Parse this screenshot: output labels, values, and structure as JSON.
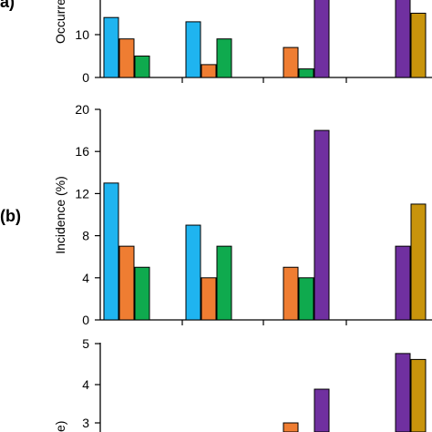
{
  "panels": [
    {
      "label": "(a)",
      "ylabel": "Occurrence",
      "yticks": [
        0,
        10
      ],
      "ylim": [
        0,
        20
      ]
    },
    {
      "label": "(b)",
      "ylabel": "Incidence (%)",
      "yticks": [
        0,
        4,
        8,
        12,
        16,
        20
      ],
      "ylim": [
        0,
        20
      ]
    },
    {
      "label": "",
      "ylabel": "e)",
      "yticks": [
        3,
        4,
        5
      ],
      "ylim": [
        2.6,
        5.1
      ]
    }
  ],
  "colors": {
    "blue": "#1FB4F0",
    "orange": "#EF7D32",
    "green": "#0FAA4E",
    "purple": "#7030A0",
    "gold": "#C8940C"
  },
  "chart_data": [
    {
      "type": "bar",
      "title": "",
      "xlabel": "",
      "ylabel": "Occurrence",
      "ylim": [
        0,
        20
      ],
      "groups": [
        [
          {
            "color": "blue",
            "value": 14
          },
          {
            "color": "orange",
            "value": 9
          },
          {
            "color": "green",
            "value": 5
          }
        ],
        [
          {
            "color": "blue",
            "value": 13
          },
          {
            "color": "orange",
            "value": 3
          },
          {
            "color": "green",
            "value": 9
          }
        ],
        [
          {
            "color": "orange",
            "value": 7
          },
          {
            "color": "green",
            "value": 2
          },
          {
            "color": "purple",
            "value": 20
          }
        ],
        [
          {
            "color": "purple",
            "value": 20
          },
          {
            "color": "gold",
            "value": 15
          }
        ]
      ]
    },
    {
      "type": "bar",
      "title": "",
      "xlabel": "",
      "ylabel": "Incidence (%)",
      "ylim": [
        0,
        20
      ],
      "groups": [
        [
          {
            "color": "blue",
            "value": 13
          },
          {
            "color": "orange",
            "value": 7
          },
          {
            "color": "green",
            "value": 5
          }
        ],
        [
          {
            "color": "blue",
            "value": 9
          },
          {
            "color": "orange",
            "value": 4
          },
          {
            "color": "green",
            "value": 7
          }
        ],
        [
          {
            "color": "orange",
            "value": 5
          },
          {
            "color": "green",
            "value": 4
          },
          {
            "color": "purple",
            "value": 18
          }
        ],
        [
          {
            "color": "purple",
            "value": 7
          },
          {
            "color": "gold",
            "value": 11
          }
        ]
      ]
    },
    {
      "type": "bar",
      "title": "",
      "xlabel": "",
      "ylabel": "",
      "ylim": [
        2.6,
        5.1
      ],
      "groups": [
        [],
        [],
        [
          {
            "color": "orange",
            "value": 3.0
          },
          {
            "color": "purple",
            "value": 3.85
          }
        ],
        [
          {
            "color": "purple",
            "value": 4.75
          },
          {
            "color": "gold",
            "value": 4.6
          }
        ]
      ]
    }
  ]
}
